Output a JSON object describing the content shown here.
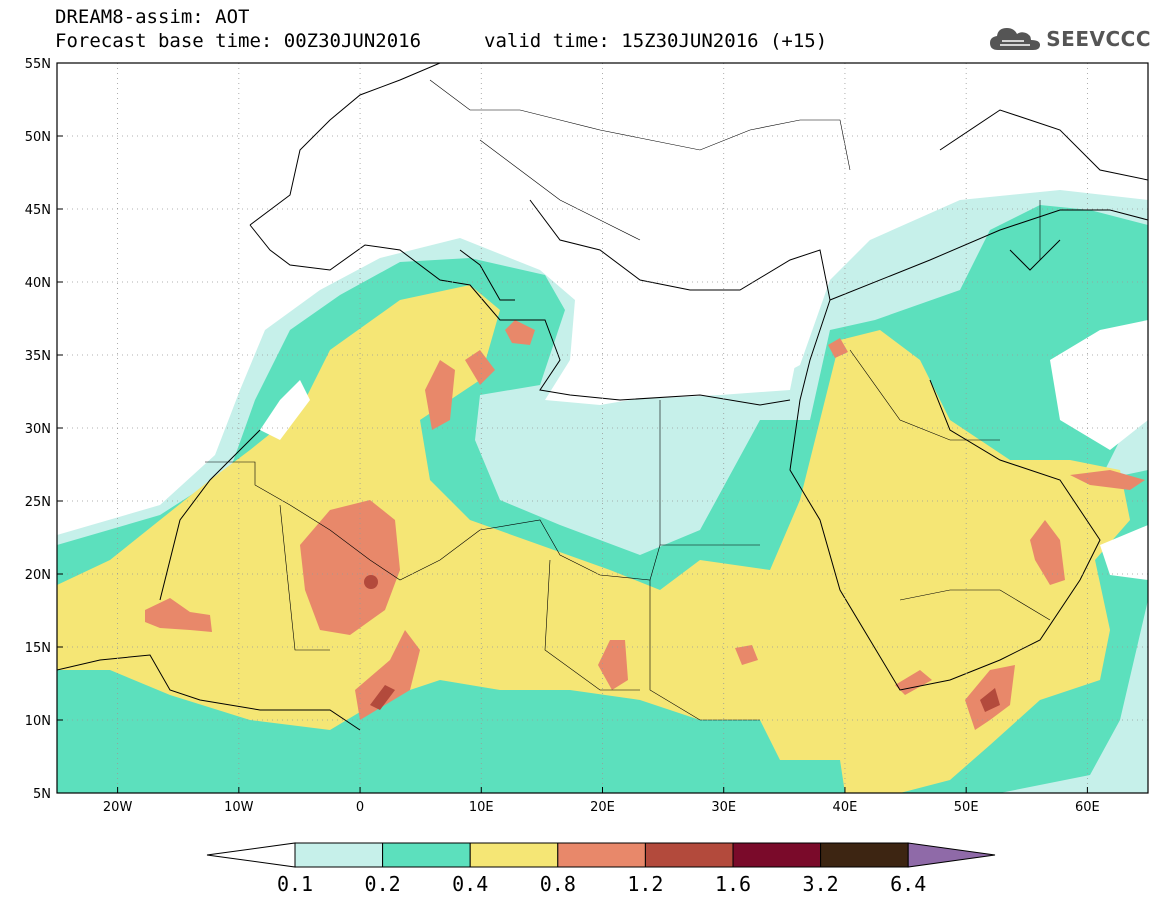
{
  "header": {
    "title": "DREAM8-assim: AOT",
    "base_time": "Forecast base time: 00Z30JUN2016",
    "valid_time": "valid time: 15Z30JUN2016 (+15)",
    "logo_text": "SEEVCCC"
  },
  "map": {
    "lon_range": [
      -25,
      65
    ],
    "lat_range": [
      5,
      55
    ],
    "lon_ticks": [
      "20W",
      "10W",
      "0",
      "10E",
      "20E",
      "30E",
      "40E",
      "50E",
      "60E"
    ],
    "lat_ticks": [
      "55N",
      "50N",
      "45N",
      "40N",
      "35N",
      "30N",
      "25N",
      "20N",
      "15N",
      "10N",
      "5N"
    ],
    "grid": "dotted"
  },
  "colorbar": {
    "labels": [
      "0.1",
      "0.2",
      "0.4",
      "0.8",
      "1.2",
      "1.6",
      "3.2",
      "6.4"
    ],
    "colors": [
      "#ffffff",
      "#c6f0ea",
      "#5ce0bd",
      "#f5e675",
      "#e8886a",
      "#b34a3c",
      "#7a0a2a",
      "#3d2512",
      "#8f6aa8"
    ]
  }
}
